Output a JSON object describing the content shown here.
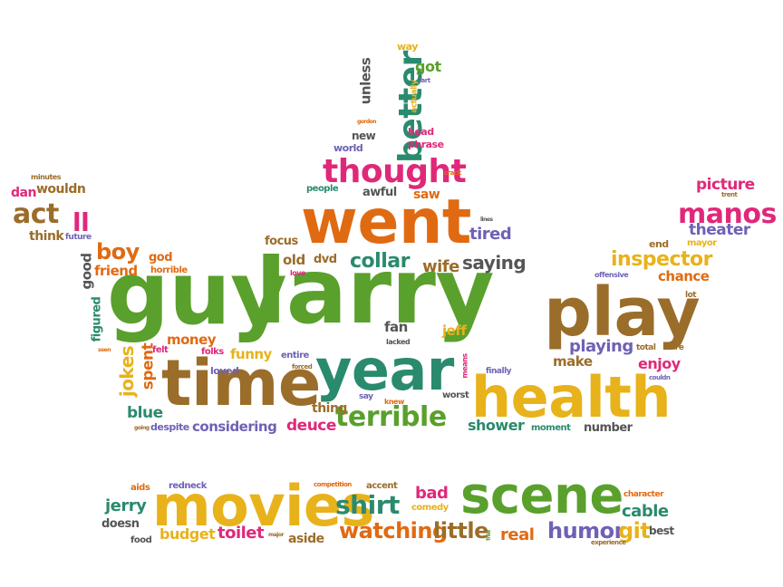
{
  "palette": {
    "green": "#5aa02c",
    "orange": "#e06a12",
    "yellow": "#e8b21b",
    "pink": "#e0287a",
    "teal": "#2a8a6e",
    "brown": "#9b6d2a",
    "purple": "#6d62b5",
    "gray": "#555555",
    "lightgreen": "#8cb43c"
  },
  "words": {
    "guy": "guy",
    "larry": "larry",
    "play": "play",
    "went": "went",
    "time": "time",
    "year": "year",
    "health": "health",
    "movies": "movies",
    "scene": "scene",
    "thought": "thought",
    "better": "better",
    "terrible": "terrible",
    "manos": "manos",
    "inspector": "inspector",
    "shirt": "shirt",
    "watching": "watching",
    "little": "little",
    "humor": "humor",
    "git": "git",
    "cable": "cable",
    "real": "real",
    "toilet": "toilet",
    "budget": "budget",
    "bad": "bad",
    "jerry": "jerry",
    "act": "act",
    "ll": "ll",
    "boy": "boy",
    "collar": "collar",
    "saying": "saying",
    "wife": "wife",
    "tired": "tired",
    "focus": "focus",
    "old": "old",
    "dvd": "dvd",
    "jokes": "jokes",
    "spent": "spent",
    "funny": "funny",
    "money": "money",
    "blue": "blue",
    "deuce": "deuce",
    "thing": "thing",
    "shower": "shower",
    "considering": "considering",
    "playing": "playing",
    "enjoy": "enjoy",
    "make": "make",
    "chance": "chance",
    "theater": "theater",
    "picture": "picture",
    "dan": "dan",
    "wouldn": "wouldn",
    "think": "think",
    "future": "future",
    "minutes": "minutes",
    "friend": "friend",
    "god": "god",
    "horrible": "horrible",
    "good": "good",
    "figured": "figured",
    "felt": "felt",
    "loved": "loved",
    "folks": "folks",
    "entire": "entire",
    "forced": "forced",
    "fan": "fan",
    "jeff": "jeff",
    "lacked": "lacked",
    "means": "means",
    "say": "say",
    "knew": "knew",
    "worst": "worst",
    "finally": "finally",
    "moment": "moment",
    "number": "number",
    "going": "going",
    "despite": "despite",
    "seen": "seen",
    "love": "love",
    "people": "people",
    "awful": "awful",
    "saw": "saw",
    "world": "world",
    "new": "new",
    "phrase": "phrase",
    "head": "head",
    "gordon": "gordon",
    "unless": "unless",
    "actually": "actually",
    "fart": "fart",
    "got": "got",
    "way": "way",
    "crack": "crack",
    "lines": "lines",
    "offensive": "offensive",
    "end": "end",
    "mayor": "mayor",
    "trent": "trent",
    "lot": "lot",
    "total": "total",
    "sure": "sure",
    "couldn": "couldn",
    "aids": "aids",
    "redneck": "redneck",
    "competition": "competition",
    "accent": "accent",
    "comedy": "comedy",
    "character": "character",
    "doesn": "doesn",
    "food": "food",
    "major": "major",
    "aside": "aside",
    "free": "free",
    "experience": "experience",
    "best": "best"
  }
}
